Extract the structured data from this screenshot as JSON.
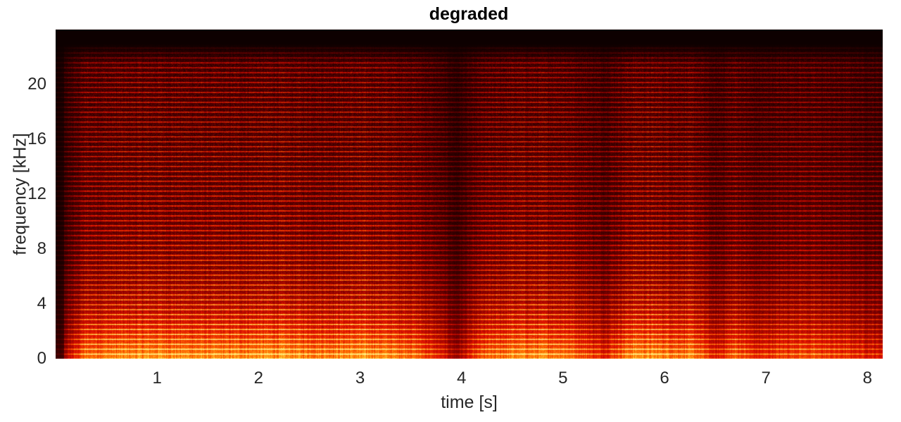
{
  "chart_data": {
    "type": "heatmap",
    "title": "degraded",
    "xlabel": "time [s]",
    "ylabel": "frequency [kHz]",
    "xlim": [
      0.0,
      8.15
    ],
    "ylim": [
      0,
      24
    ],
    "x_ticks": [
      1,
      2,
      3,
      4,
      5,
      6,
      7,
      8
    ],
    "y_ticks": [
      0,
      4,
      8,
      12,
      16,
      20
    ],
    "colormap": [
      "#0d0000",
      "#7a0000",
      "#e01000",
      "#ff6a00",
      "#ffd23a",
      "#ffffb0"
    ],
    "energy_profile": {
      "time_s": [
        0.05,
        0.3,
        0.6,
        1.0,
        1.6,
        2.1,
        2.6,
        3.1,
        3.5,
        3.8,
        3.95,
        4.2,
        4.5,
        5.0,
        5.4,
        5.7,
        6.0,
        6.3,
        6.5,
        6.7,
        6.9,
        7.3,
        7.8,
        8.1
      ],
      "relative_level": [
        0.3,
        0.85,
        0.9,
        0.95,
        0.9,
        0.95,
        0.9,
        0.95,
        0.85,
        0.55,
        0.35,
        0.75,
        0.9,
        0.9,
        0.6,
        0.95,
        0.9,
        0.85,
        0.55,
        0.8,
        0.6,
        0.75,
        0.65,
        0.55
      ]
    },
    "harmonic_spacing_khz": 0.36,
    "max_visible_frequency_khz": 21.5
  }
}
